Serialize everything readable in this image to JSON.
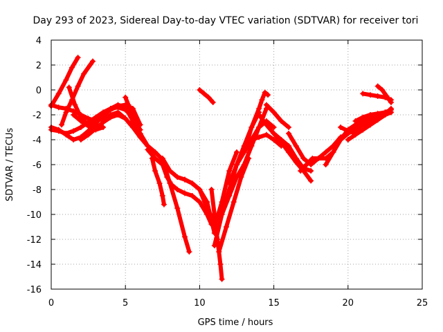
{
  "chart_data": {
    "type": "scatter",
    "title": "Day 293 of 2023, Sidereal Day-to-day VTEC variation (SDTVAR) for receiver tori",
    "xlabel": "GPS time / hours",
    "ylabel": "SDTVAR / TECUs",
    "xlim": [
      0,
      25
    ],
    "ylim": [
      -16,
      4
    ],
    "xticks": [
      "0",
      "5",
      "10",
      "15",
      "20",
      "25"
    ],
    "yticks": [
      "-16",
      "-14",
      "-12",
      "-10",
      "-8",
      "-6",
      "-4",
      "-2",
      "0",
      "2",
      "4"
    ],
    "grid": true,
    "marker_color": "#ff0000",
    "marker": "plus",
    "series": [
      {
        "x": [
          0.0,
          0.5,
          1.0,
          1.4,
          1.8
        ],
        "y": [
          -1.3,
          -0.3,
          0.8,
          1.8,
          2.6
        ]
      },
      {
        "x": [
          0.7,
          1.0,
          1.4,
          1.8,
          2.2,
          2.8
        ],
        "y": [
          -2.8,
          -1.8,
          -0.8,
          0.3,
          1.3,
          2.3
        ]
      },
      {
        "x": [
          0.0,
          0.5,
          1.0,
          1.5,
          2.0,
          2.5,
          3.0,
          3.5,
          4.0,
          4.5,
          5.0,
          5.5,
          6.0,
          6.5,
          7.0
        ],
        "y": [
          -1.2,
          -1.4,
          -1.5,
          -1.7,
          -2.0,
          -2.3,
          -2.5,
          -2.3,
          -2.0,
          -1.8,
          -2.3,
          -3.0,
          -3.8,
          -4.5,
          -5.0
        ]
      },
      {
        "x": [
          0.0,
          0.5,
          1.0,
          1.5,
          2.0,
          2.5,
          3.0,
          3.5,
          4.0,
          4.5,
          5.0,
          5.5,
          6.0
        ],
        "y": [
          -3.2,
          -3.3,
          -3.5,
          -3.3,
          -3.0,
          -2.6,
          -2.2,
          -1.8,
          -1.5,
          -1.4,
          -1.6,
          -2.2,
          -3.2
        ]
      },
      {
        "x": [
          0.0,
          0.5,
          1.0,
          1.5,
          2.0,
          2.5,
          3.0,
          3.5,
          4.0,
          4.5,
          5.0,
          5.5
        ],
        "y": [
          -3.0,
          -3.2,
          -3.6,
          -4.0,
          -3.8,
          -3.3,
          -2.7,
          -2.0,
          -1.5,
          -1.2,
          -1.4,
          -2.5
        ]
      },
      {
        "x": [
          1.2,
          1.6,
          2.0,
          2.5,
          3.0,
          3.5,
          4.0,
          4.5,
          5.0,
          5.5,
          6.0
        ],
        "y": [
          0.2,
          -1.2,
          -2.2,
          -2.8,
          -2.5,
          -2.0,
          -1.6,
          -1.3,
          -1.2,
          -1.5,
          -2.8
        ]
      },
      {
        "x": [
          1.5,
          2.0,
          2.5,
          3.0,
          3.5
        ],
        "y": [
          -2.0,
          -2.5,
          -2.9,
          -3.2,
          -3.0
        ]
      },
      {
        "x": [
          2.0,
          2.5,
          3.0,
          3.5,
          4.0,
          4.5,
          5.0
        ],
        "y": [
          -4.0,
          -3.6,
          -3.1,
          -2.6,
          -2.2,
          -2.0,
          -2.3
        ]
      },
      {
        "x": [
          5.0,
          5.2,
          5.5
        ],
        "y": [
          -0.6,
          -1.2,
          -2.0
        ]
      },
      {
        "x": [
          5.5,
          6.0,
          6.5,
          7.0,
          7.5,
          8.0,
          8.5,
          9.0,
          9.3
        ],
        "y": [
          -2.5,
          -3.5,
          -4.5,
          -5.0,
          -5.6,
          -7.5,
          -9.5,
          -11.8,
          -13.0
        ]
      },
      {
        "x": [
          6.5,
          7.0,
          7.5,
          7.8,
          8.0
        ],
        "y": [
          -4.8,
          -5.5,
          -6.0,
          -7.0,
          -7.4
        ]
      },
      {
        "x": [
          6.8,
          7.0,
          7.3,
          7.5,
          7.6
        ],
        "y": [
          -5.5,
          -6.5,
          -7.5,
          -8.5,
          -9.2
        ]
      },
      {
        "x": [
          7.5,
          8.0,
          8.5,
          9.0,
          9.5,
          10.0,
          10.5,
          11.0
        ],
        "y": [
          -5.5,
          -6.5,
          -7.0,
          -7.2,
          -7.5,
          -8.0,
          -9.5,
          -10.6
        ]
      },
      {
        "x": [
          8.0,
          8.5,
          9.0,
          9.5,
          10.0,
          10.5,
          10.8
        ],
        "y": [
          -7.5,
          -8.0,
          -8.3,
          -8.5,
          -9.0,
          -10.0,
          -10.8
        ]
      },
      {
        "x": [
          9.0,
          9.5,
          10.0,
          10.5,
          10.8,
          11.0
        ],
        "y": [
          -7.2,
          -7.5,
          -8.0,
          -9.0,
          -10.5,
          -11.5
        ]
      },
      {
        "x": [
          10.0,
          10.3,
          10.6,
          10.9
        ],
        "y": [
          0.0,
          -0.3,
          -0.6,
          -1.0
        ]
      },
      {
        "x": [
          10.8,
          11.0,
          11.2,
          11.4,
          11.5
        ],
        "y": [
          -8.0,
          -10.0,
          -12.0,
          -14.0,
          -15.2
        ]
      },
      {
        "x": [
          11.0,
          11.5,
          12.0,
          12.5
        ],
        "y": [
          -11.0,
          -9.0,
          -6.5,
          -5.0
        ]
      },
      {
        "x": [
          11.0,
          11.5,
          12.0,
          12.5,
          13.0,
          13.5,
          14.0
        ],
        "y": [
          -12.5,
          -10.0,
          -8.0,
          -6.0,
          -4.5,
          -3.0,
          -1.8
        ]
      },
      {
        "x": [
          11.3,
          11.8,
          12.3,
          12.8,
          13.3
        ],
        "y": [
          -13.0,
          -11.0,
          -9.0,
          -7.0,
          -5.5
        ]
      },
      {
        "x": [
          11.5,
          12.0,
          12.5,
          13.0,
          13.5,
          14.0,
          14.5
        ],
        "y": [
          -10.0,
          -8.5,
          -7.0,
          -6.0,
          -4.5,
          -3.0,
          -1.5
        ]
      },
      {
        "x": [
          12.0,
          12.5,
          13.0,
          13.5,
          14.0,
          14.5,
          15.0
        ],
        "y": [
          -7.5,
          -6.0,
          -5.0,
          -4.0,
          -3.0,
          -2.5,
          -3.0
        ]
      },
      {
        "x": [
          13.0,
          13.5,
          14.0,
          14.2,
          14.4,
          14.6
        ],
        "y": [
          -5.0,
          -3.0,
          -1.5,
          -0.8,
          -0.2,
          -0.4
        ]
      },
      {
        "x": [
          13.5,
          14.0,
          14.5,
          15.0,
          15.5
        ],
        "y": [
          -4.0,
          -3.8,
          -3.6,
          -4.0,
          -4.5
        ]
      },
      {
        "x": [
          14.0,
          14.5,
          15.0,
          15.5,
          16.0,
          16.5,
          17.0,
          17.5
        ],
        "y": [
          -2.0,
          -2.8,
          -3.5,
          -4.2,
          -5.0,
          -5.8,
          -6.5,
          -7.3
        ]
      },
      {
        "x": [
          14.5,
          15.0,
          15.5,
          16.0
        ],
        "y": [
          -1.2,
          -1.8,
          -2.5,
          -3.0
        ]
      },
      {
        "x": [
          15.0,
          15.5,
          16.0,
          16.5,
          17.0,
          17.5
        ],
        "y": [
          -3.5,
          -4.0,
          -4.5,
          -5.5,
          -6.3,
          -6.5
        ]
      },
      {
        "x": [
          16.0,
          16.5,
          17.0,
          17.5,
          18.0,
          18.5,
          19.0,
          19.5,
          20.0
        ],
        "y": [
          -3.5,
          -4.5,
          -5.5,
          -6.0,
          -5.5,
          -5.0,
          -4.5,
          -4.0,
          -3.5
        ]
      },
      {
        "x": [
          16.8,
          17.2,
          17.6,
          18.0,
          18.5,
          19.0,
          19.5,
          20.0,
          20.5,
          21.0
        ],
        "y": [
          -6.5,
          -6.0,
          -5.5,
          -5.5,
          -5.5,
          -5.0,
          -4.0,
          -3.5,
          -3.0,
          -2.8
        ]
      },
      {
        "x": [
          18.5,
          19.0,
          19.5,
          20.0,
          20.5,
          21.0,
          21.5,
          22.0,
          22.5,
          22.9
        ],
        "y": [
          -6.0,
          -5.0,
          -4.0,
          -3.2,
          -2.8,
          -2.5,
          -2.3,
          -2.0,
          -1.8,
          -1.6
        ]
      },
      {
        "x": [
          19.0,
          19.5,
          20.0,
          20.5,
          21.0,
          21.5,
          22.0,
          22.5,
          22.9
        ],
        "y": [
          -4.5,
          -3.8,
          -3.5,
          -3.2,
          -2.8,
          -2.5,
          -2.2,
          -2.0,
          -1.8
        ]
      },
      {
        "x": [
          19.5,
          20.0,
          20.5,
          21.0,
          21.5,
          22.0,
          22.5,
          22.9
        ],
        "y": [
          -3.0,
          -3.3,
          -3.5,
          -3.2,
          -2.8,
          -2.4,
          -2.0,
          -1.5
        ]
      },
      {
        "x": [
          20.0,
          20.5,
          21.0,
          21.5,
          22.0,
          22.5,
          22.9
        ],
        "y": [
          -4.0,
          -3.6,
          -3.2,
          -2.8,
          -2.4,
          -2.0,
          -1.8
        ]
      },
      {
        "x": [
          20.5,
          21.0,
          21.5,
          22.0,
          22.5,
          22.8
        ],
        "y": [
          -2.5,
          -2.2,
          -2.0,
          -1.9,
          -1.8,
          -1.7
        ]
      },
      {
        "x": [
          21.0,
          21.5,
          22.0,
          22.5,
          22.9
        ],
        "y": [
          -0.3,
          -0.4,
          -0.5,
          -0.6,
          -0.8
        ]
      },
      {
        "x": [
          22.0,
          22.3,
          22.6,
          22.9
        ],
        "y": [
          0.3,
          0.0,
          -0.5,
          -1.0
        ]
      }
    ]
  }
}
